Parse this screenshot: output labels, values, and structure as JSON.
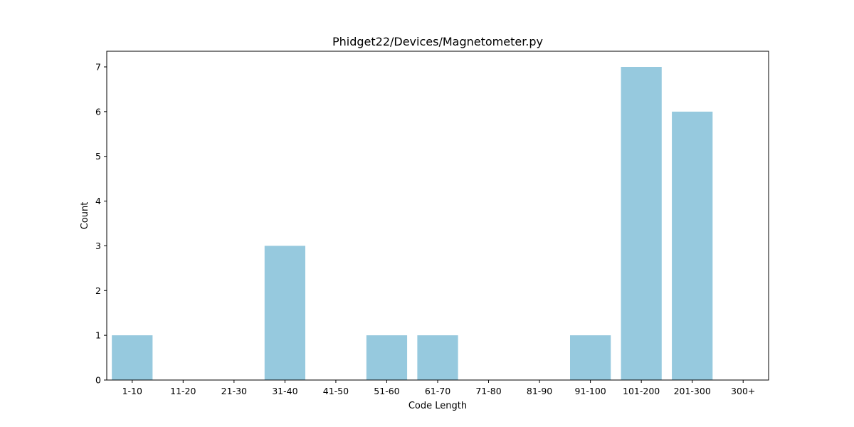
{
  "chart_data": {
    "type": "bar",
    "title": "Phidget22/Devices/Magnetometer.py",
    "xlabel": "Code Length",
    "ylabel": "Count",
    "categories": [
      "1-10",
      "11-20",
      "21-30",
      "31-40",
      "41-50",
      "51-60",
      "61-70",
      "71-80",
      "81-90",
      "91-100",
      "101-200",
      "201-300",
      "300+"
    ],
    "values": [
      1,
      0,
      0,
      3,
      0,
      1,
      1,
      0,
      0,
      1,
      7,
      6,
      0
    ],
    "ylim": [
      0,
      7.35
    ],
    "yticks": [
      0,
      1,
      2,
      3,
      4,
      5,
      6,
      7
    ],
    "bar_color": "#96c9de",
    "grid": false,
    "legend": "none"
  }
}
